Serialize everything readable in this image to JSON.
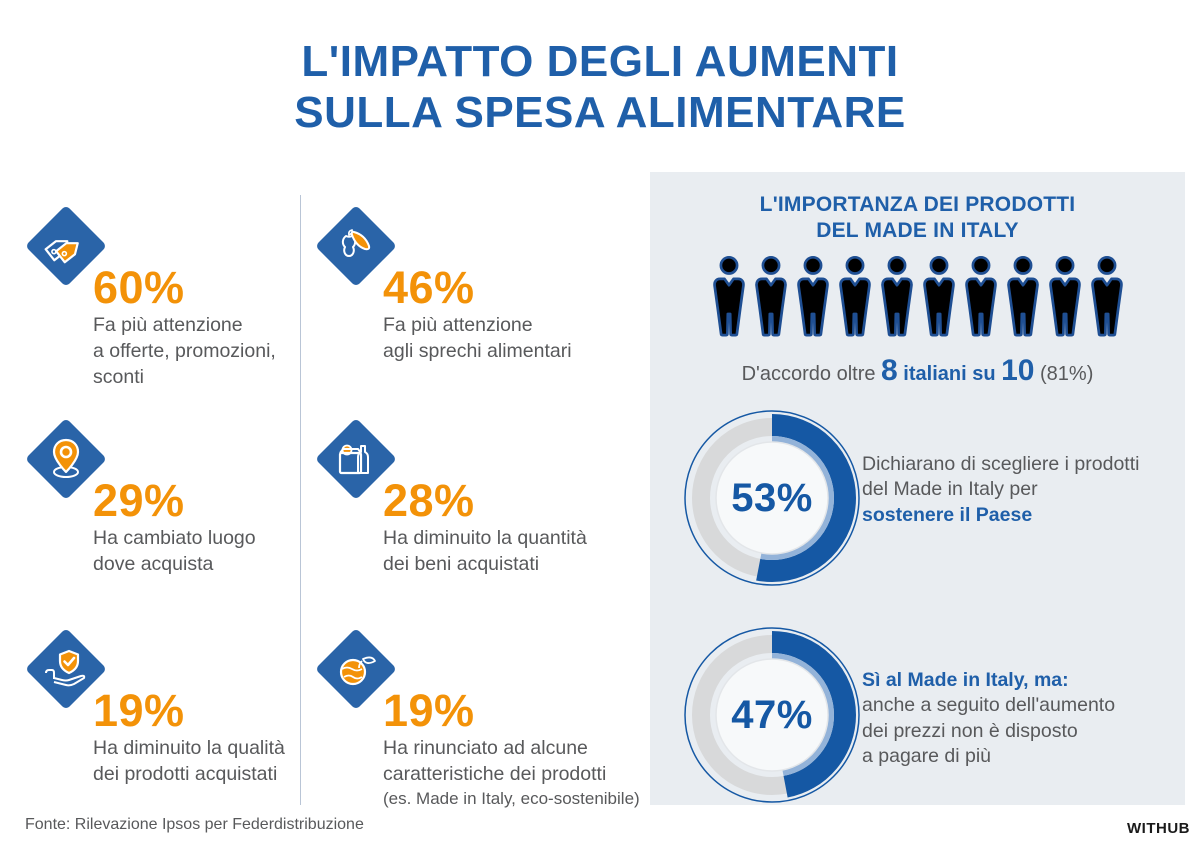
{
  "colors": {
    "title_blue": "#1F5FA9",
    "accent_orange": "#F39208",
    "text_gray": "#58595B",
    "diamond_blue": "#2A64A8",
    "panel_bg": "#E9EDF1",
    "donut_blue": "#1558A4",
    "donut_light_blue": "#93B3D9",
    "donut_track_gray": "#D8D9DA",
    "person_outline_blue": "#1F4F93",
    "divider": "#B9C5D6"
  },
  "title": "L'IMPATTO DEGLI AUMENTI\nSULLA SPESA ALIMENTARE",
  "stats": [
    {
      "icon": "price-tags-icon",
      "value": "60%",
      "text": "Fa più attenzione\na offerte, promozioni,\nsconti"
    },
    {
      "icon": "food-waste-icon",
      "value": "46%",
      "text": "Fa più attenzione\nagli sprechi alimentari"
    },
    {
      "icon": "location-pin-icon",
      "value": "29%",
      "text": "Ha cambiato luogo\ndove acquista"
    },
    {
      "icon": "shopping-bag-icon",
      "value": "28%",
      "text": "Ha diminuito la quantità\ndei beni acquistati"
    },
    {
      "icon": "quality-shield-icon",
      "value": "19%",
      "text": "Ha diminuito la qualità\ndei prodotti acquistati"
    },
    {
      "icon": "globe-eco-icon",
      "value": "19%",
      "text": "Ha rinunciato ad alcune\ncaratteristiche dei prodotti",
      "note": "(es. Made in Italy, eco-sostenibile)"
    }
  ],
  "panel": {
    "title": "L'IMPORTANZA DEI PRODOTTI\nDEL MADE IN ITALY",
    "pictogram": {
      "total": 10,
      "filled": 8
    },
    "agreement": {
      "prefix": "D'accordo oltre ",
      "big1": "8",
      "mid": " italiani su ",
      "big2": "10",
      "suffix": " (81%)"
    },
    "donuts": [
      {
        "pct": 53,
        "label": "53%",
        "text_gray": "Dichiarano di scegliere i prodotti\ndel Made in Italy per",
        "text_bold": "sostenere il Paese"
      },
      {
        "pct": 47,
        "label": "47%",
        "text_bold": "Sì al Made in Italy, ma:",
        "text_gray": "anche a seguito dell'aumento\ndei prezzi non è disposto\na pagare di più"
      }
    ]
  },
  "footer": {
    "source": "Fonte: Rilevazione Ipsos per Federdistribuzione",
    "logo": "WITHUB"
  },
  "chart_data": [
    {
      "type": "pictogram",
      "title": "L'IMPORTANZA DEI PRODOTTI DEL MADE IN ITALY",
      "units_total": 10,
      "units_filled": 8,
      "value_pct": 81,
      "caption": "D'accordo oltre 8 italiani su 10 (81%)"
    },
    {
      "type": "donut",
      "value": 53,
      "remainder": 47,
      "label": "Dichiarano di scegliere i prodotti del Made in Italy per sostenere il Paese"
    },
    {
      "type": "donut",
      "value": 47,
      "remainder": 53,
      "label": "Sì al Made in Italy, ma: anche a seguito dell'aumento dei prezzi non è disposto a pagare di più"
    },
    {
      "type": "stat-icons",
      "title": "L'IMPATTO DEGLI AUMENTI SULLA SPESA ALIMENTARE",
      "categories": [
        "Fa più attenzione a offerte, promozioni, sconti",
        "Fa più attenzione agli sprechi alimentari",
        "Ha cambiato luogo dove acquista",
        "Ha diminuito la quantità dei beni acquistati",
        "Ha diminuito la qualità dei prodotti acquistati",
        "Ha rinunciato ad alcune caratteristiche dei prodotti (es. Made in Italy, eco-sostenibile)"
      ],
      "values": [
        60,
        46,
        29,
        28,
        19,
        19
      ]
    }
  ]
}
